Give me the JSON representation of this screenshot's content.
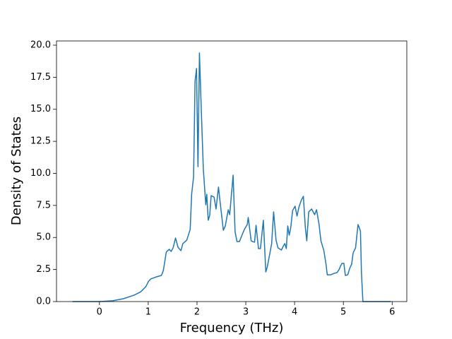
{
  "chart_data": {
    "type": "line",
    "xlabel": "Frequency (THz)",
    "ylabel": "Density of States",
    "x": [
      -0.55,
      0,
      0.27,
      0.49,
      0.71,
      0.85,
      0.95,
      1.01,
      1.05,
      1.17,
      1.27,
      1.31,
      1.37,
      1.43,
      1.47,
      1.51,
      1.56,
      1.61,
      1.67,
      1.71,
      1.79,
      1.86,
      1.89,
      1.93,
      1.96,
      1.99,
      2.02,
      2.05,
      2.09,
      2.13,
      2.18,
      2.2,
      2.23,
      2.26,
      2.29,
      2.35,
      2.39,
      2.44,
      2.48,
      2.54,
      2.58,
      2.64,
      2.67,
      2.74,
      2.78,
      2.82,
      2.87,
      2.91,
      2.97,
      3.03,
      3.05,
      3.11,
      3.14,
      3.18,
      3.21,
      3.26,
      3.3,
      3.36,
      3.41,
      3.44,
      3.49,
      3.53,
      3.57,
      3.62,
      3.66,
      3.73,
      3.78,
      3.8,
      3.83,
      3.86,
      3.89,
      3.92,
      3.96,
      4.01,
      4.05,
      4.09,
      4.14,
      4.18,
      4.22,
      4.25,
      4.29,
      4.35,
      4.41,
      4.45,
      4.5,
      4.54,
      4.6,
      4.64,
      4.67,
      4.74,
      4.81,
      4.87,
      4.91,
      4.94,
      4.97,
      5.01,
      5.04,
      5.09,
      5.13,
      5.17,
      5.2,
      5.25,
      5.3,
      5.35,
      5.37,
      5.4,
      5.97
    ],
    "series": [
      {
        "color": "#1f77b4",
        "values": [
          0,
          0,
          0.06,
          0.22,
          0.5,
          0.77,
          1.16,
          1.6,
          1.76,
          1.93,
          2.04,
          2.42,
          3.86,
          4.08,
          3.91,
          4.19,
          4.96,
          4.24,
          3.97,
          4.52,
          4.79,
          5.62,
          8.37,
          9.75,
          17.19,
          18.18,
          10.52,
          19.39,
          14.71,
          10.3,
          7.55,
          8.37,
          6.34,
          6.72,
          8.26,
          8.15,
          7.22,
          8.93,
          7.55,
          5.56,
          5.9,
          7.16,
          6.78,
          9.86,
          5.45,
          4.68,
          4.68,
          5.07,
          5.62,
          6.01,
          6.56,
          4.74,
          4.68,
          4.63,
          5.95,
          4.13,
          4.13,
          6.34,
          2.31,
          2.7,
          3.69,
          4.52,
          7.0,
          4.79,
          4.19,
          4.02,
          4.41,
          4.52,
          4.13,
          5.9,
          5.18,
          5.73,
          7.11,
          7.44,
          6.67,
          7.38,
          7.93,
          8.21,
          5.79,
          4.74,
          7.0,
          7.22,
          6.78,
          7.16,
          6.06,
          4.74,
          3.97,
          3.03,
          2.09,
          2.09,
          2.2,
          2.26,
          2.48,
          2.75,
          2.98,
          2.98,
          2.04,
          2.09,
          2.59,
          2.92,
          3.8,
          4.19,
          6.01,
          5.51,
          2.31,
          0,
          0
        ]
      }
    ],
    "xlim": [
      -0.88,
      6.3
    ],
    "xticks": [
      0,
      1,
      2,
      3,
      4,
      5,
      6
    ],
    "ylim": [
      0,
      20.33
    ],
    "yticks": [
      {
        "value": 0,
        "label": "0.0"
      },
      {
        "value": 2.5,
        "label": "2.5"
      },
      {
        "value": 5,
        "label": "5.0"
      },
      {
        "value": 7.5,
        "label": "7.5"
      },
      {
        "value": 10,
        "label": "10.0"
      },
      {
        "value": 12.5,
        "label": "12.5"
      },
      {
        "value": 15,
        "label": "15.0"
      },
      {
        "value": 17.5,
        "label": "17.5"
      },
      {
        "value": 20,
        "label": "20.0"
      }
    ]
  }
}
